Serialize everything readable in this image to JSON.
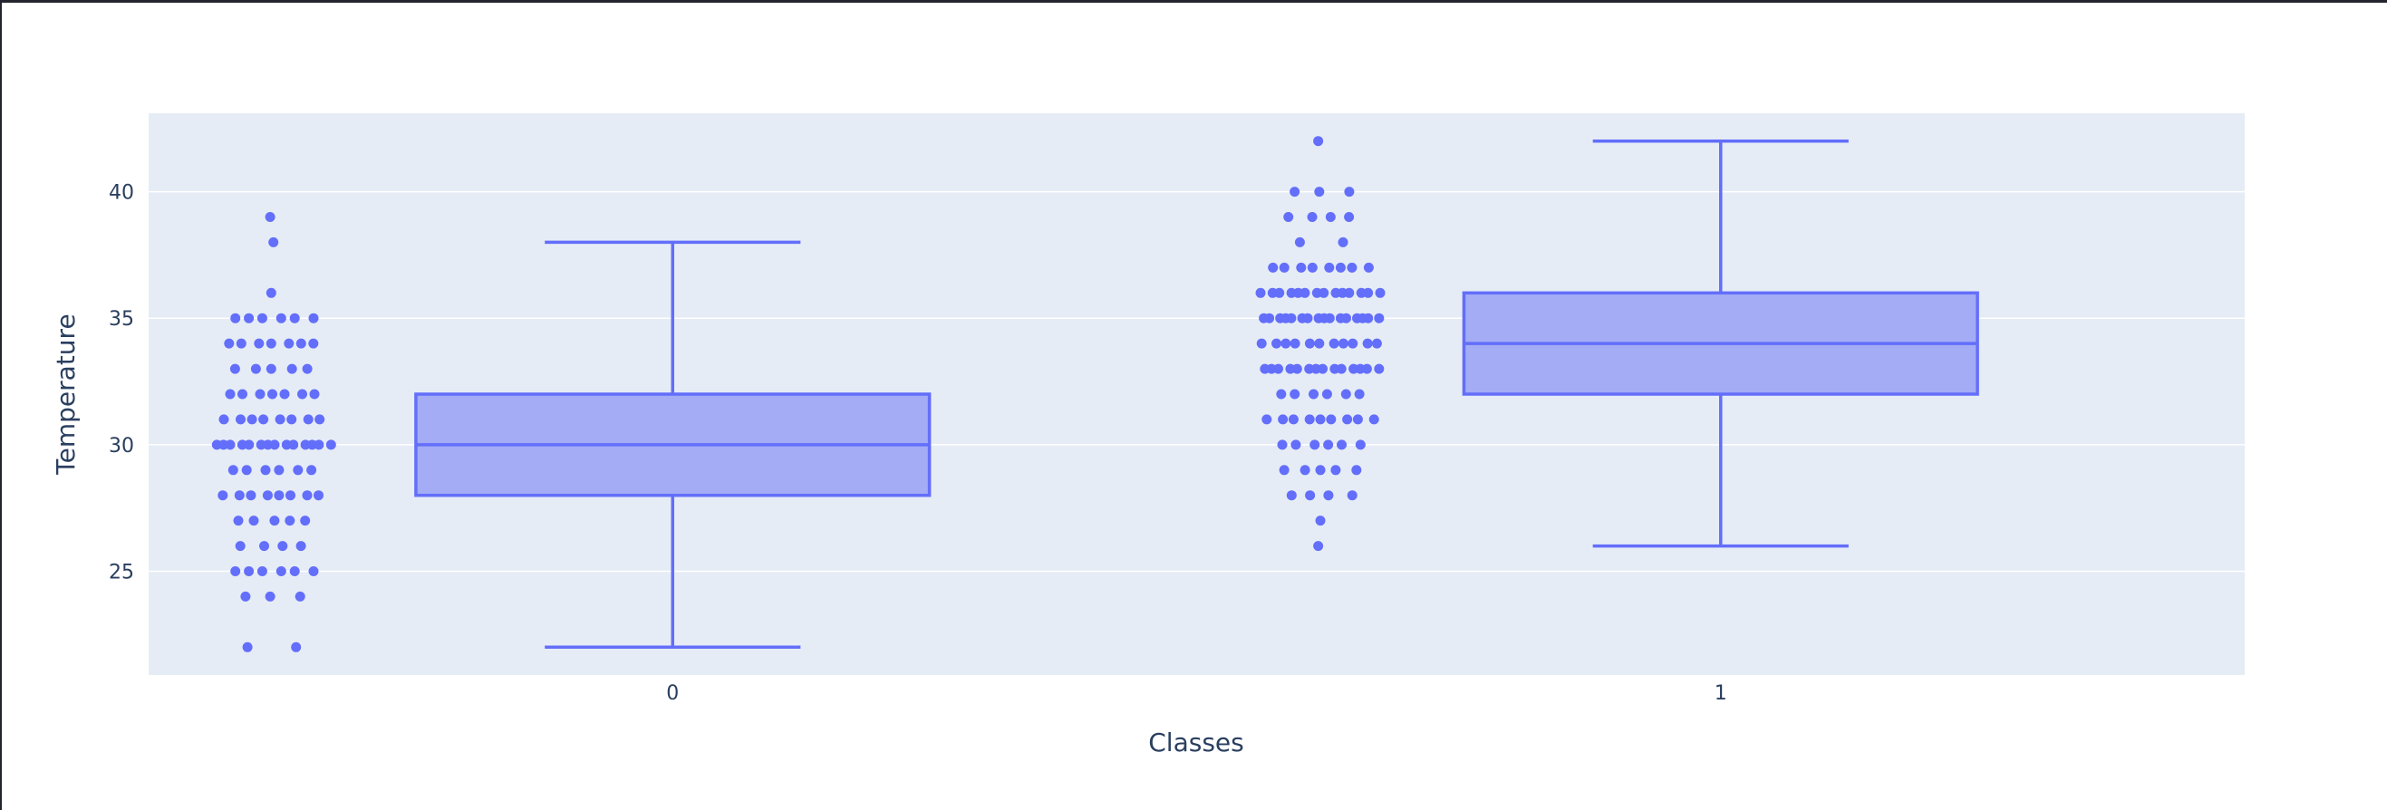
{
  "chart_data": {
    "type": "box",
    "xlabel": "Classes",
    "ylabel": "Temperature",
    "categories": [
      "0",
      "1"
    ],
    "ylim": [
      20.9,
      43.1
    ],
    "yticks": [
      25,
      30,
      35,
      40
    ],
    "grid": true,
    "legend": "none",
    "colors": {
      "marker": "#636efa",
      "box_fill": "#a3acf5",
      "plot_bg": "#e5ecf6",
      "gridline": "#ffffff",
      "text": "#2a3f5f"
    },
    "series": [
      {
        "category": "0",
        "box": {
          "min": 22,
          "q1": 28,
          "median": 30,
          "q3": 32,
          "max": 38
        },
        "points": [
          [
            22,
            2
          ],
          [
            24,
            3
          ],
          [
            25,
            6
          ],
          [
            26,
            4
          ],
          [
            27,
            5
          ],
          [
            28,
            8
          ],
          [
            29,
            6
          ],
          [
            30,
            14
          ],
          [
            31,
            8
          ],
          [
            32,
            7
          ],
          [
            33,
            5
          ],
          [
            34,
            7
          ],
          [
            35,
            6
          ],
          [
            36,
            1
          ],
          [
            38,
            1
          ],
          [
            39,
            1
          ]
        ]
      },
      {
        "category": "1",
        "box": {
          "min": 26,
          "q1": 32,
          "median": 34,
          "q3": 36,
          "max": 42
        },
        "points": [
          [
            26,
            1
          ],
          [
            27,
            1
          ],
          [
            28,
            4
          ],
          [
            29,
            5
          ],
          [
            30,
            6
          ],
          [
            31,
            9
          ],
          [
            32,
            6
          ],
          [
            33,
            14
          ],
          [
            34,
            11
          ],
          [
            35,
            16
          ],
          [
            36,
            14
          ],
          [
            37,
            8
          ],
          [
            38,
            2
          ],
          [
            39,
            4
          ],
          [
            40,
            3
          ],
          [
            42,
            1
          ]
        ]
      }
    ]
  }
}
